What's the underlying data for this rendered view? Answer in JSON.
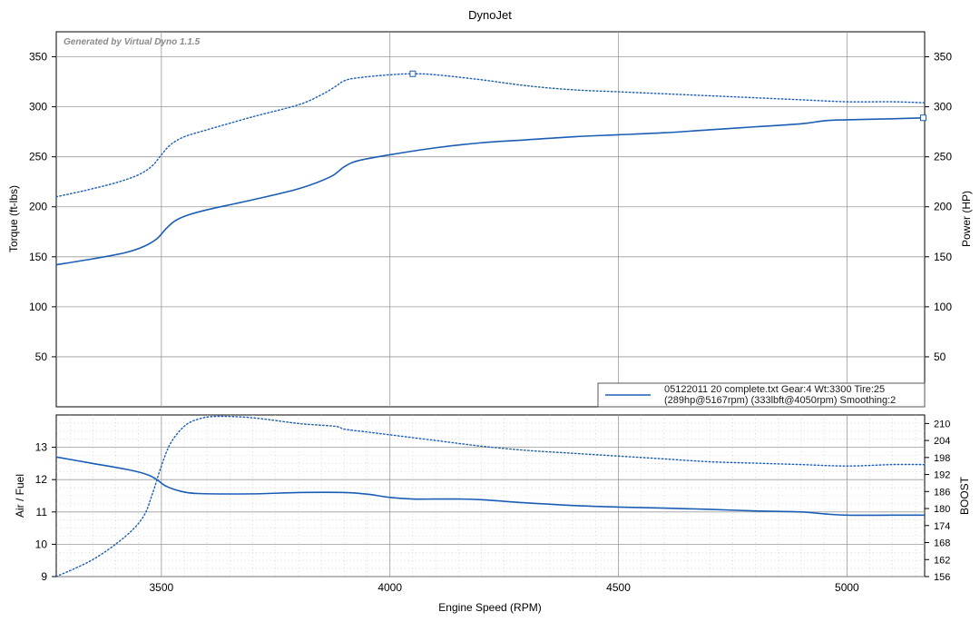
{
  "title": "DynoJet",
  "watermark": "Generated by Virtual Dyno 1.1.5",
  "legend": {
    "line1": "05122011 20 complete.txt Gear:4 Wt:3300 Tire:25",
    "line2": "(289hp@5167rpm) (333lbft@4050rpm) Smoothing:2"
  },
  "colors": {
    "series": "#1a5db5",
    "grid": "#9a9a9a",
    "minor_grid": "#c8c8c8"
  },
  "chart_data": [
    {
      "type": "line",
      "panel": "top",
      "xlabel": "",
      "ylabel": "Torque (ft-lbs)",
      "y2label": "Power (HP)",
      "xlim": [
        3270,
        5170
      ],
      "ylim": [
        0,
        375
      ],
      "y2lim": [
        0,
        375
      ],
      "xticks": [
        3500,
        4000,
        4500,
        5000
      ],
      "yticks": [
        50,
        100,
        150,
        200,
        250,
        300,
        350
      ],
      "y2ticks": [
        50,
        100,
        150,
        200,
        250,
        300,
        350
      ],
      "grid": true,
      "legend_position": "bottom-right",
      "series": [
        {
          "style": "dotted",
          "axis": "left",
          "x": [
            3270,
            3330,
            3400,
            3450,
            3480,
            3500,
            3520,
            3550,
            3600,
            3700,
            3800,
            3850,
            3880,
            3900,
            3930,
            4000,
            4050,
            4100,
            4200,
            4300,
            4400,
            4500,
            4600,
            4700,
            4800,
            4900,
            5000,
            5100,
            5170
          ],
          "y": [
            210,
            216,
            224,
            232,
            241,
            252,
            262,
            270,
            277,
            290,
            302,
            312,
            320,
            326,
            329,
            332,
            333,
            332,
            327,
            321,
            317,
            315,
            313,
            311,
            309,
            307,
            305,
            305,
            304
          ]
        },
        {
          "style": "solid",
          "axis": "right",
          "x": [
            3270,
            3350,
            3420,
            3460,
            3490,
            3510,
            3530,
            3560,
            3600,
            3700,
            3800,
            3870,
            3900,
            3930,
            4000,
            4100,
            4200,
            4300,
            4400,
            4500,
            4600,
            4700,
            4800,
            4900,
            4950,
            5000,
            5100,
            5170
          ],
          "y": [
            142,
            148,
            154,
            160,
            168,
            178,
            186,
            192,
            197,
            207,
            218,
            230,
            240,
            246,
            252,
            259,
            264,
            267,
            270,
            272,
            274,
            277,
            280,
            283,
            286,
            287,
            288,
            289
          ],
          "marker": {
            "x": 5167,
            "y": 289
          }
        }
      ],
      "markers": [
        {
          "x": 4050,
          "y": 333,
          "series": 0
        }
      ]
    },
    {
      "type": "line",
      "panel": "bottom",
      "xlabel": "Engine Speed (RPM)",
      "ylabel": "Air / Fuel",
      "y2label": "BOOST",
      "xlim": [
        3270,
        5170
      ],
      "ylim": [
        9,
        14
      ],
      "y2lim": [
        156,
        213
      ],
      "xticks": [
        3500,
        4000,
        4500,
        5000
      ],
      "yticks": [
        9,
        10,
        11,
        12,
        13
      ],
      "y2ticks": [
        156,
        162,
        168,
        174,
        180,
        186,
        192,
        198,
        204,
        210
      ],
      "grid": true,
      "series": [
        {
          "style": "solid",
          "axis": "left",
          "x": [
            3270,
            3350,
            3430,
            3470,
            3490,
            3510,
            3540,
            3580,
            3700,
            3800,
            3900,
            3950,
            4000,
            4050,
            4100,
            4150,
            4200,
            4300,
            4400,
            4500,
            4600,
            4700,
            4800,
            4900,
            4950,
            5000,
            5100,
            5170
          ],
          "y": [
            12.7,
            12.5,
            12.3,
            12.15,
            12.0,
            11.8,
            11.65,
            11.57,
            11.56,
            11.6,
            11.6,
            11.55,
            11.45,
            11.4,
            11.4,
            11.4,
            11.38,
            11.28,
            11.2,
            11.15,
            11.12,
            11.08,
            11.03,
            11.0,
            10.94,
            10.9,
            10.9,
            10.9
          ]
        },
        {
          "style": "dotted",
          "axis": "right",
          "x": [
            3270,
            3350,
            3420,
            3460,
            3480,
            3500,
            3520,
            3550,
            3580,
            3620,
            3700,
            3800,
            3880,
            3900,
            3950,
            4000,
            4100,
            4200,
            4300,
            4400,
            4500,
            4600,
            4700,
            4800,
            4900,
            5000,
            5100,
            5170
          ],
          "y": [
            156,
            162,
            170,
            177,
            185,
            195,
            203,
            209,
            211.5,
            212.5,
            212,
            210,
            209,
            208,
            207,
            206,
            204,
            202,
            200.5,
            199.5,
            198.5,
            197.5,
            196.5,
            196,
            195.5,
            195,
            195.5,
            195.5
          ]
        }
      ]
    }
  ]
}
